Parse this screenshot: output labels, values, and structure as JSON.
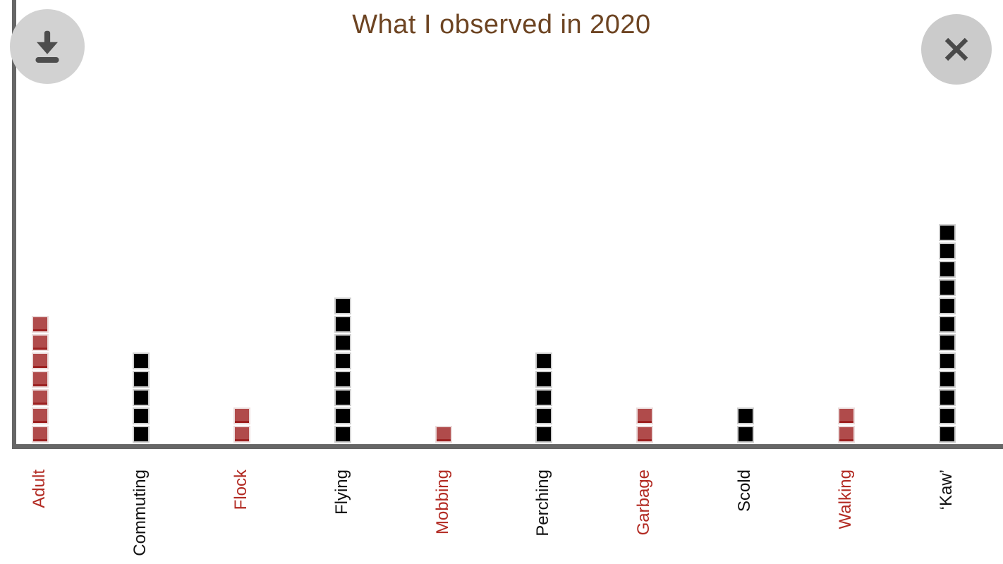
{
  "toolbar": {
    "download_icon": "download-icon",
    "close_icon": "close-icon"
  },
  "colors": {
    "title_text": "#6d4422",
    "axis": "#666666",
    "red_square": "#b04b4b",
    "black_square": "#000000",
    "red_label": "#b22a22",
    "black_label": "#111111",
    "download_button_bg": "#d2d2d2",
    "close_button_bg": "#cbcbcb",
    "button_glyph": "#4d4d4d"
  },
  "chart_data": {
    "type": "bar",
    "style": "waffle-pictogram (stacked unit squares, 1 square = 1 count)",
    "title": "What I observed in 2020",
    "categories": [
      "Adult",
      "Commuting",
      "Flock",
      "Flying",
      "Mobbing",
      "Perching",
      "Garbage",
      "Scold",
      "Walking",
      "‘Kaw’"
    ],
    "values": [
      7,
      5,
      2,
      8,
      1,
      5,
      2,
      2,
      2,
      12
    ],
    "color_key": [
      "red",
      "black",
      "red",
      "black",
      "red",
      "black",
      "red",
      "black",
      "red",
      "black"
    ],
    "xlabel": "",
    "ylabel": "",
    "ylim": [
      0,
      12
    ],
    "grid": false,
    "legend": false,
    "tick_label_rotation_deg": 90
  }
}
